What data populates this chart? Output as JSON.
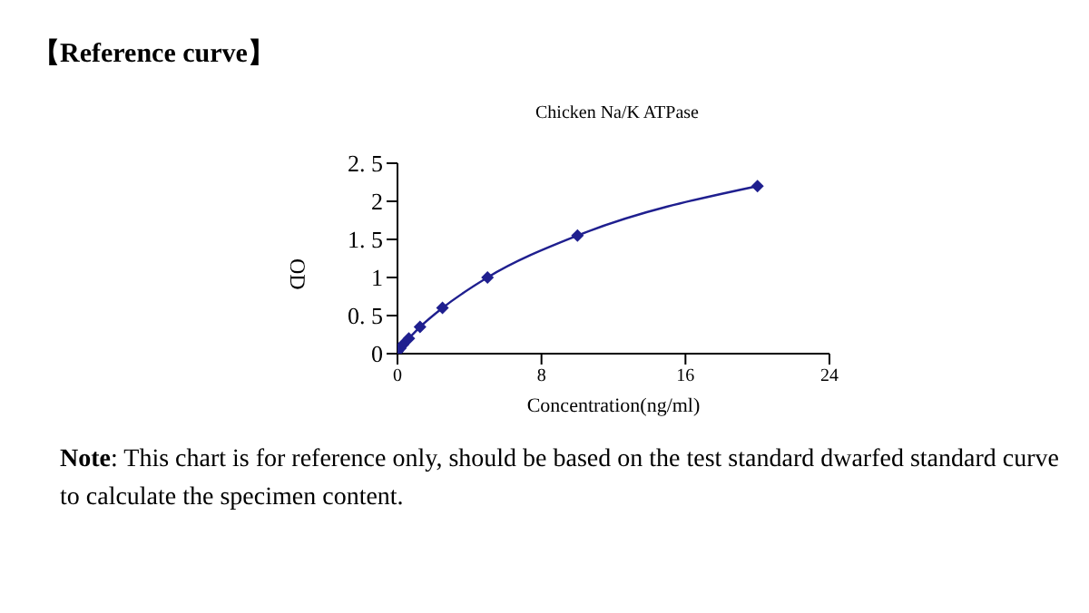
{
  "chart_data": {
    "type": "line",
    "title": "【Reference curve】",
    "subtitle": "Chicken Na/K ATPase",
    "xlabel": "Concentration(ng/ml)",
    "ylabel": "OD",
    "x": [
      0,
      0.16,
      0.31,
      0.63,
      1.25,
      2.5,
      5,
      10,
      20
    ],
    "series": [
      {
        "color": "#1f1f8f",
        "values": [
          0.03,
          0.07,
          0.12,
          0.2,
          0.35,
          0.6,
          1.0,
          1.55,
          2.2
        ]
      }
    ],
    "xlim": [
      0,
      24
    ],
    "xticks": [
      0,
      8,
      16,
      24
    ],
    "ylim": [
      0,
      2.5
    ],
    "yticks": [
      0,
      0.5,
      1,
      1.5,
      2,
      2.5
    ],
    "grid": false,
    "legend": false,
    "marker": "diamond",
    "line_style": "solid",
    "annotations": [
      "Note: This chart is for reference only, should be based on the test standard dwarfed standard curve to calculate the specimen content."
    ]
  }
}
